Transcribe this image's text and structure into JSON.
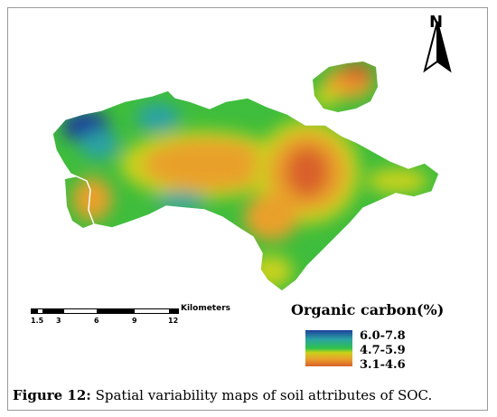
{
  "map": {
    "north_label": "N",
    "legend_title": "Organic carbon(%)",
    "legend_classes": [
      {
        "label": "6.0-7.8",
        "color": "#1d3f9a"
      },
      {
        "label": "4.7-5.9",
        "color": "#2ec24b"
      },
      {
        "label": "3.1-4.6",
        "color": "#d9612a"
      }
    ],
    "scale_units": "Kilometers",
    "scale_ticks": [
      "1.5",
      "3",
      "6",
      "9",
      "12"
    ]
  },
  "caption": {
    "label": "Figure 12:",
    "text": " Spatial variability maps of soil attributes of SOC."
  }
}
